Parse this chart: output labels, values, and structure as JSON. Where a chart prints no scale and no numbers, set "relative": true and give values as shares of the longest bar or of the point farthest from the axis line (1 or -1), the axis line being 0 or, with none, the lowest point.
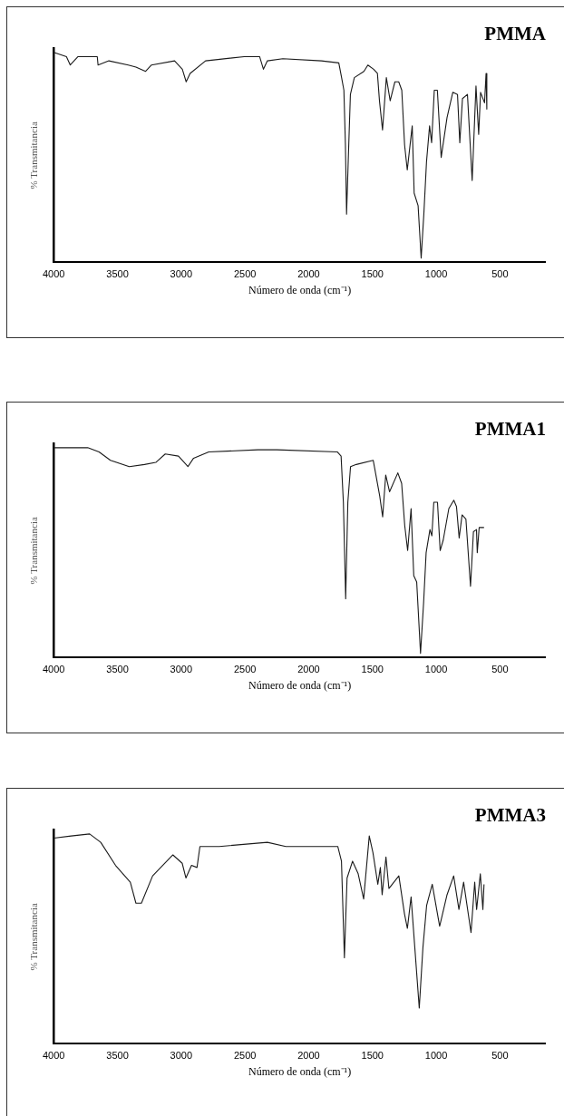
{
  "chart_data": [
    {
      "type": "line",
      "title": "PMMA",
      "xlabel": "Número de onda (cm⁻¹)",
      "ylabel": "% Transmitancia",
      "relative": true,
      "xlim": [
        4000,
        140
      ],
      "xticks": [
        4000,
        3500,
        3000,
        2500,
        2000,
        1500,
        1000,
        500
      ],
      "grid": false,
      "legend": false,
      "marker": "none",
      "line_style": "solid",
      "x": [
        4000,
        3900,
        3870,
        3809,
        3658,
        3652,
        3567,
        3415,
        3355,
        3279,
        3233,
        3052,
        2991,
        2961,
        2930,
        2809,
        2506,
        2385,
        2355,
        2324,
        2203,
        1900,
        1764,
        1742,
        1724,
        1712,
        1703,
        1688,
        1673,
        1642,
        1567,
        1536,
        1491,
        1461,
        1445,
        1421,
        1391,
        1361,
        1324,
        1294,
        1270,
        1248,
        1227,
        1203,
        1188,
        1173,
        1142,
        1118,
        1097,
        1076,
        1052,
        1036,
        1015,
        991,
        961,
        915,
        870,
        833,
        815,
        794,
        755,
        718,
        688,
        667,
        652,
        621,
        609,
        603
      ],
      "series": [
        {
          "color": "#1a1a1a",
          "values": [
            1.0,
            0.98,
            0.94,
            0.98,
            0.98,
            0.94,
            0.96,
            0.94,
            0.93,
            0.91,
            0.94,
            0.96,
            0.92,
            0.86,
            0.9,
            0.96,
            0.98,
            0.98,
            0.92,
            0.96,
            0.97,
            0.96,
            0.95,
            0.88,
            0.82,
            0.56,
            0.23,
            0.52,
            0.8,
            0.88,
            0.91,
            0.94,
            0.92,
            0.9,
            0.77,
            0.63,
            0.88,
            0.77,
            0.86,
            0.86,
            0.82,
            0.56,
            0.44,
            0.57,
            0.65,
            0.33,
            0.27,
            0.02,
            0.23,
            0.48,
            0.65,
            0.57,
            0.82,
            0.82,
            0.5,
            0.69,
            0.81,
            0.8,
            0.57,
            0.78,
            0.8,
            0.39,
            0.84,
            0.61,
            0.81,
            0.76,
            0.9,
            0.73
          ]
        }
      ]
    },
    {
      "type": "line",
      "title": "PMMA1",
      "xlabel": "Número de onda (cm⁻¹)",
      "ylabel": "% Transmitancia",
      "relative": true,
      "xlim": [
        4000,
        140
      ],
      "xticks": [
        4000,
        3500,
        3000,
        2500,
        2000,
        1500,
        1000,
        500
      ],
      "grid": false,
      "legend": false,
      "marker": "none",
      "line_style": "solid",
      "x": [
        4000,
        3733,
        3644,
        3555,
        3407,
        3288,
        3199,
        3125,
        3021,
        2947,
        2903,
        2784,
        2398,
        2250,
        1776,
        1746,
        1728,
        1710,
        1693,
        1672,
        1627,
        1494,
        1473,
        1443,
        1420,
        1396,
        1366,
        1301,
        1271,
        1247,
        1224,
        1197,
        1176,
        1153,
        1123,
        1099,
        1079,
        1049,
        1034,
        1019,
        990,
        969,
        945,
        901,
        862,
        841,
        820,
        797,
        767,
        731,
        708,
        684,
        678,
        663,
        625
      ],
      "series": [
        {
          "color": "#1a1a1a",
          "values": [
            1.0,
            1.0,
            0.98,
            0.94,
            0.91,
            0.92,
            0.93,
            0.97,
            0.96,
            0.91,
            0.95,
            0.98,
            0.99,
            0.99,
            0.98,
            0.96,
            0.74,
            0.28,
            0.74,
            0.91,
            0.92,
            0.94,
            0.87,
            0.77,
            0.67,
            0.87,
            0.79,
            0.88,
            0.83,
            0.63,
            0.51,
            0.71,
            0.39,
            0.36,
            0.02,
            0.26,
            0.5,
            0.61,
            0.58,
            0.74,
            0.74,
            0.51,
            0.56,
            0.71,
            0.75,
            0.72,
            0.57,
            0.68,
            0.66,
            0.34,
            0.6,
            0.61,
            0.5,
            0.62,
            0.62
          ]
        }
      ]
    },
    {
      "type": "line",
      "title": "PMMA3",
      "xlabel": "Número de onda (cm⁻¹)",
      "ylabel": "% Transmitancia",
      "relative": true,
      "xlim": [
        4000,
        140
      ],
      "xticks": [
        4000,
        3500,
        3000,
        2500,
        2000,
        1500,
        1000,
        500
      ],
      "grid": false,
      "legend": false,
      "marker": "none",
      "line_style": "solid",
      "x": [
        4000,
        3863,
        3718,
        3631,
        3515,
        3399,
        3355,
        3312,
        3224,
        3065,
        2992,
        2963,
        2919,
        2876,
        2853,
        2701,
        2324,
        2179,
        1772,
        1743,
        1720,
        1699,
        1656,
        1612,
        1569,
        1525,
        1496,
        1458,
        1438,
        1424,
        1394,
        1371,
        1293,
        1249,
        1226,
        1197,
        1168,
        1133,
        1104,
        1075,
        1031,
        973,
        915,
        863,
        822,
        785,
        727,
        698,
        683,
        654,
        634,
        625
      ],
      "series": [
        {
          "color": "#1a1a1a",
          "values": [
            0.98,
            0.99,
            1.0,
            0.96,
            0.85,
            0.77,
            0.67,
            0.67,
            0.8,
            0.9,
            0.86,
            0.79,
            0.85,
            0.84,
            0.94,
            0.94,
            0.96,
            0.94,
            0.94,
            0.87,
            0.41,
            0.79,
            0.87,
            0.81,
            0.69,
            0.99,
            0.91,
            0.76,
            0.84,
            0.71,
            0.89,
            0.74,
            0.8,
            0.62,
            0.55,
            0.7,
            0.46,
            0.17,
            0.46,
            0.66,
            0.76,
            0.56,
            0.71,
            0.8,
            0.64,
            0.77,
            0.53,
            0.77,
            0.64,
            0.81,
            0.64,
            0.76
          ]
        }
      ]
    }
  ]
}
